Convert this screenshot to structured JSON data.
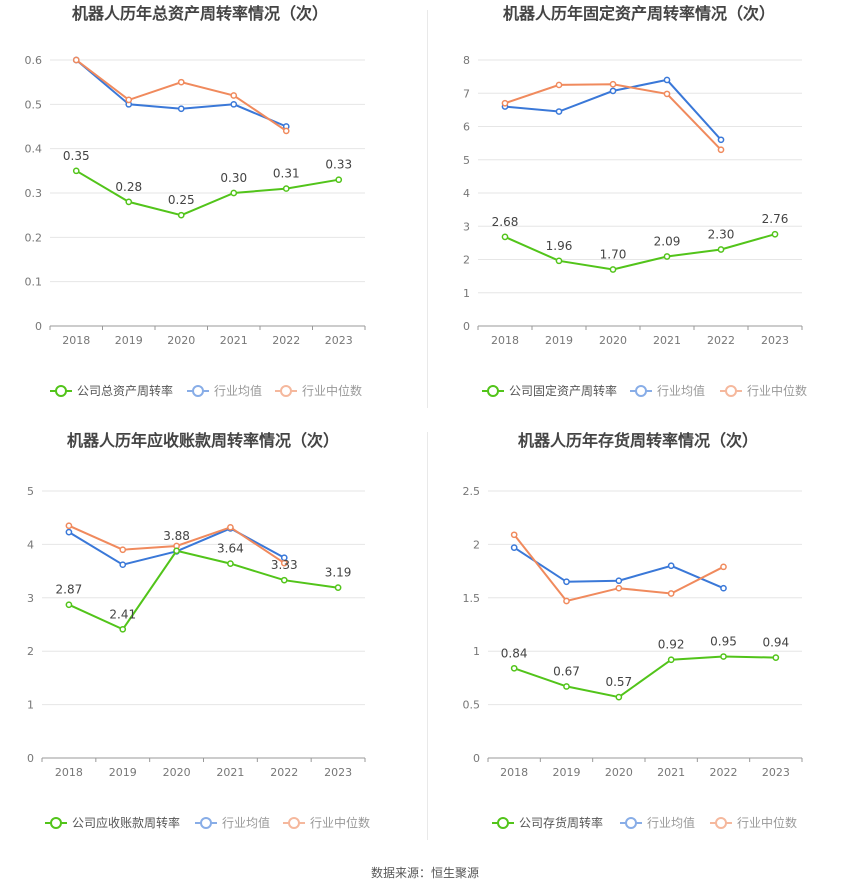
{
  "colors": {
    "company": "#52c41a",
    "avg": "#3a78d8",
    "median": "#f08a5d"
  },
  "legend_labels": {
    "avg": "行业均值",
    "median": "行业中位数"
  },
  "source": "数据来源：恒生聚源",
  "chart_data": [
    {
      "type": "line",
      "title": "机器人历年总资产周转率情况（次）",
      "categories": [
        "2018",
        "2019",
        "2020",
        "2021",
        "2022",
        "2023"
      ],
      "ylim": [
        0,
        0.6
      ],
      "yticks": [
        "0",
        "0.1",
        "0.2",
        "0.3",
        "0.4",
        "0.5",
        "0.6"
      ],
      "grid": true,
      "legend_position": "bottom",
      "series": [
        {
          "name": "公司总资产周转率",
          "key": "company",
          "values": [
            0.35,
            0.28,
            0.25,
            0.3,
            0.31,
            0.33
          ],
          "labels": [
            "0.35",
            "0.28",
            "0.25",
            "0.30",
            "0.31",
            "0.33"
          ]
        },
        {
          "name": "行业均值",
          "key": "avg",
          "values": [
            0.6,
            0.5,
            0.49,
            0.5,
            0.45,
            null
          ]
        },
        {
          "name": "行业中位数",
          "key": "median",
          "values": [
            0.6,
            0.51,
            0.55,
            0.52,
            0.44,
            null
          ]
        }
      ]
    },
    {
      "type": "line",
      "title": "机器人历年固定资产周转率情况（次）",
      "categories": [
        "2018",
        "2019",
        "2020",
        "2021",
        "2022",
        "2023"
      ],
      "ylim": [
        0,
        8
      ],
      "yticks": [
        "0",
        "1",
        "2",
        "3",
        "4",
        "5",
        "6",
        "7",
        "8"
      ],
      "grid": true,
      "legend_position": "bottom",
      "series": [
        {
          "name": "公司固定资产周转率",
          "key": "company",
          "values": [
            2.68,
            1.96,
            1.7,
            2.09,
            2.3,
            2.76
          ],
          "labels": [
            "2.68",
            "1.96",
            "1.70",
            "2.09",
            "2.30",
            "2.76"
          ]
        },
        {
          "name": "行业均值",
          "key": "avg",
          "values": [
            6.6,
            6.45,
            7.07,
            7.4,
            5.6,
            null
          ]
        },
        {
          "name": "行业中位数",
          "key": "median",
          "values": [
            6.7,
            7.25,
            7.27,
            6.98,
            5.3,
            null
          ]
        }
      ]
    },
    {
      "type": "line",
      "title": "机器人历年应收账款周转率情况（次）",
      "categories": [
        "2018",
        "2019",
        "2020",
        "2021",
        "2022",
        "2023"
      ],
      "ylim": [
        0,
        5
      ],
      "yticks": [
        "0",
        "1",
        "2",
        "3",
        "4",
        "5"
      ],
      "grid": true,
      "legend_position": "bottom",
      "series": [
        {
          "name": "公司应收账款周转率",
          "key": "company",
          "values": [
            2.87,
            2.41,
            3.88,
            3.64,
            3.33,
            3.19
          ],
          "labels": [
            "2.87",
            "2.41",
            "3.88",
            "3.64",
            "3.33",
            "3.19"
          ]
        },
        {
          "name": "行业均值",
          "key": "avg",
          "values": [
            4.23,
            3.62,
            3.87,
            4.3,
            3.75,
            null
          ]
        },
        {
          "name": "行业中位数",
          "key": "median",
          "values": [
            4.35,
            3.9,
            3.97,
            4.32,
            3.65,
            null
          ]
        }
      ]
    },
    {
      "type": "line",
      "title": "机器人历年存货周转率情况（次）",
      "categories": [
        "2018",
        "2019",
        "2020",
        "2021",
        "2022",
        "2023"
      ],
      "ylim": [
        0,
        2.5
      ],
      "yticks": [
        "0",
        "0.5",
        "1",
        "1.5",
        "2",
        "2.5"
      ],
      "grid": true,
      "legend_position": "bottom",
      "series": [
        {
          "name": "公司存货周转率",
          "key": "company",
          "values": [
            0.84,
            0.67,
            0.57,
            0.92,
            0.95,
            0.94
          ],
          "labels": [
            "0.84",
            "0.67",
            "0.57",
            "0.92",
            "0.95",
            "0.94"
          ]
        },
        {
          "name": "行业均值",
          "key": "avg",
          "values": [
            1.97,
            1.65,
            1.66,
            1.8,
            1.59,
            null
          ]
        },
        {
          "name": "行业中位数",
          "key": "median",
          "values": [
            2.09,
            1.47,
            1.59,
            1.54,
            1.79,
            null
          ]
        }
      ]
    }
  ]
}
